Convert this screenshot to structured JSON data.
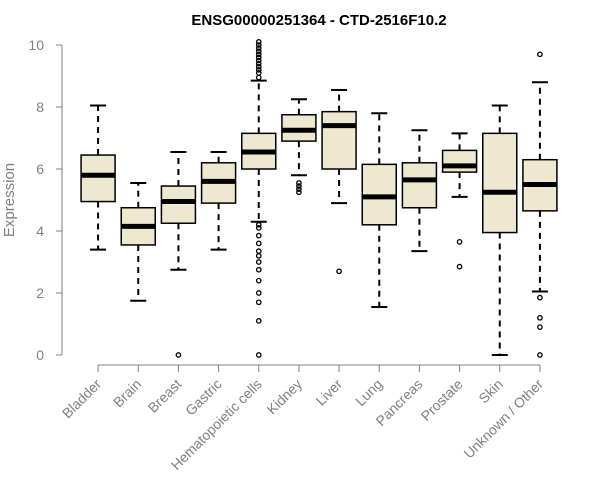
{
  "chart_data": {
    "type": "boxplot",
    "title": "ENSG00000251364 - CTD-2516F10.2",
    "ylabel": "Expression",
    "xlabel": "",
    "ylim": [
      0,
      10
    ],
    "yticks": [
      0,
      2,
      4,
      6,
      8,
      10
    ],
    "grid": false,
    "colors": {
      "box_fill": "#EFE8D0",
      "stroke": "#000000",
      "axis": "#808080"
    },
    "categories": [
      "Bladder",
      "Brain",
      "Breast",
      "Gastric",
      "Hematopoietic cells",
      "Kidney",
      "Liver",
      "Lung",
      "Pancreas",
      "Prostate",
      "Skin",
      "Unknown / Other"
    ],
    "boxes": [
      {
        "q1": 4.95,
        "median": 5.8,
        "q3": 6.45,
        "whisker_low": 3.4,
        "whisker_high": 8.05,
        "outliers": []
      },
      {
        "q1": 3.55,
        "median": 4.15,
        "q3": 4.75,
        "whisker_low": 1.75,
        "whisker_high": 5.55,
        "outliers": []
      },
      {
        "q1": 4.25,
        "median": 4.95,
        "q3": 5.45,
        "whisker_low": 2.75,
        "whisker_high": 6.55,
        "outliers": [
          0.0
        ]
      },
      {
        "q1": 4.9,
        "median": 5.6,
        "q3": 6.2,
        "whisker_low": 3.4,
        "whisker_high": 6.55,
        "outliers": []
      },
      {
        "q1": 6.0,
        "median": 6.55,
        "q3": 7.15,
        "whisker_low": 4.3,
        "whisker_high": 8.85,
        "outliers": [
          0.0,
          1.1,
          1.7,
          2.0,
          2.4,
          2.75,
          3.0,
          3.2,
          3.35,
          3.6,
          3.85,
          4.1,
          4.2,
          8.95,
          9.1,
          9.2,
          9.3,
          9.4,
          9.5,
          9.6,
          9.7,
          9.8,
          9.9,
          10.0,
          10.1
        ]
      },
      {
        "q1": 6.9,
        "median": 7.25,
        "q3": 7.75,
        "whisker_low": 5.8,
        "whisker_high": 8.25,
        "outliers": [
          5.25,
          5.35,
          5.45,
          5.55
        ]
      },
      {
        "q1": 6.0,
        "median": 7.4,
        "q3": 7.85,
        "whisker_low": 4.9,
        "whisker_high": 8.55,
        "outliers": [
          2.7
        ]
      },
      {
        "q1": 4.2,
        "median": 5.1,
        "q3": 6.15,
        "whisker_low": 1.55,
        "whisker_high": 7.8,
        "outliers": []
      },
      {
        "q1": 4.75,
        "median": 5.65,
        "q3": 6.2,
        "whisker_low": 3.35,
        "whisker_high": 7.25,
        "outliers": []
      },
      {
        "q1": 5.9,
        "median": 6.1,
        "q3": 6.6,
        "whisker_low": 5.1,
        "whisker_high": 7.15,
        "outliers": [
          2.85,
          3.65
        ]
      },
      {
        "q1": 3.95,
        "median": 5.25,
        "q3": 7.15,
        "whisker_low": 0.0,
        "whisker_high": 8.05,
        "outliers": []
      },
      {
        "q1": 4.65,
        "median": 5.5,
        "q3": 6.3,
        "whisker_low": 2.05,
        "whisker_high": 8.8,
        "outliers": [
          0.0,
          0.9,
          1.2,
          1.85,
          9.7
        ]
      }
    ]
  }
}
